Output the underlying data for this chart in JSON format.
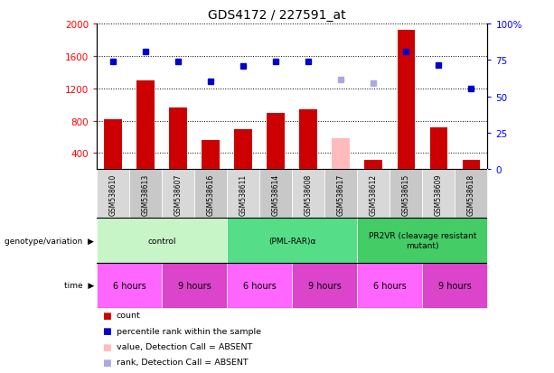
{
  "title": "GDS4172 / 227591_at",
  "samples": [
    "GSM538610",
    "GSM538613",
    "GSM538607",
    "GSM538616",
    "GSM538611",
    "GSM538614",
    "GSM538608",
    "GSM538617",
    "GSM538612",
    "GSM538615",
    "GSM538609",
    "GSM538618"
  ],
  "bar_values": [
    820,
    1300,
    960,
    560,
    700,
    890,
    940,
    null,
    320,
    1920,
    720,
    320
  ],
  "bar_absent": [
    null,
    null,
    null,
    null,
    null,
    null,
    null,
    580,
    null,
    null,
    null,
    null
  ],
  "dot_values": [
    1530,
    1650,
    1530,
    1280,
    1470,
    1530,
    1530,
    null,
    null,
    1650,
    1490,
    1200
  ],
  "dot_absent": [
    null,
    null,
    null,
    null,
    null,
    null,
    null,
    1310,
    1260,
    null,
    null,
    null
  ],
  "ylim_left": [
    200,
    2000
  ],
  "left_ticks": [
    400,
    800,
    1200,
    1600,
    2000
  ],
  "right_ticks": [
    0,
    25,
    50,
    75,
    100
  ],
  "right_tick_labels": [
    "0",
    "25",
    "50",
    "75",
    "100%"
  ],
  "genotype_groups": [
    {
      "label": "control",
      "start": 0,
      "end": 4,
      "color": "#c8f5c8"
    },
    {
      "label": "(PML-RAR)α",
      "start": 4,
      "end": 8,
      "color": "#55dd88"
    },
    {
      "label": "PR2VR (cleavage resistant\nmutant)",
      "start": 8,
      "end": 12,
      "color": "#44cc66"
    }
  ],
  "time_groups": [
    {
      "label": "6 hours",
      "start": 0,
      "end": 2,
      "color": "#ff66ff"
    },
    {
      "label": "9 hours",
      "start": 2,
      "end": 4,
      "color": "#dd44cc"
    },
    {
      "label": "6 hours",
      "start": 4,
      "end": 6,
      "color": "#ff66ff"
    },
    {
      "label": "9 hours",
      "start": 6,
      "end": 8,
      "color": "#dd44cc"
    },
    {
      "label": "6 hours",
      "start": 8,
      "end": 10,
      "color": "#ff66ff"
    },
    {
      "label": "9 hours",
      "start": 10,
      "end": 12,
      "color": "#dd44cc"
    }
  ],
  "bar_color": "#cc0000",
  "bar_absent_color": "#ffbbbb",
  "dot_color": "#0000cc",
  "dot_absent_color": "#aaaadd",
  "legend_items": [
    {
      "label": "count",
      "color": "#cc0000"
    },
    {
      "label": "percentile rank within the sample",
      "color": "#0000cc"
    },
    {
      "label": "value, Detection Call = ABSENT",
      "color": "#ffbbbb"
    },
    {
      "label": "rank, Detection Call = ABSENT",
      "color": "#aaaadd"
    }
  ]
}
